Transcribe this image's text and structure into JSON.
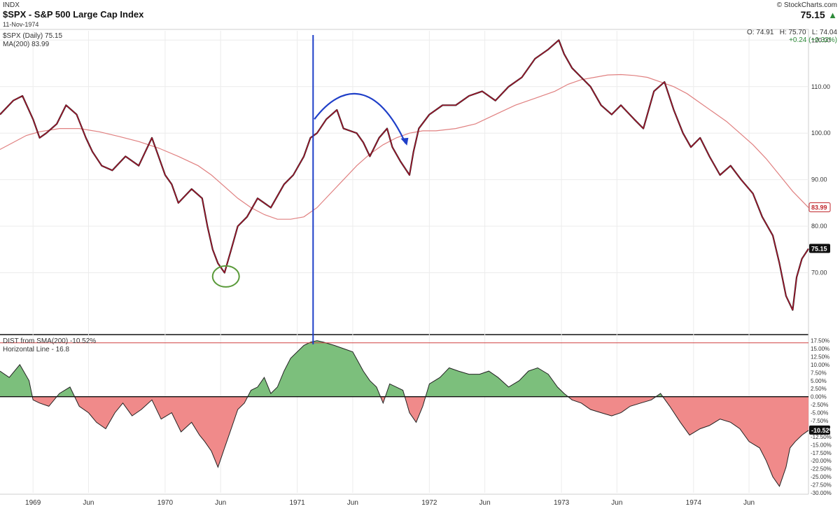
{
  "header": {
    "exchange": "INDX",
    "title": "$SPX - S&P 500 Large Cap Index",
    "date": "11-Nov-1974",
    "copyright": "© StockCharts.com",
    "last": "75.15",
    "ohlc": "O: 74.91   H: 75.70   L: 74.04",
    "change": "+0.24 (+0.32%)",
    "colors": {
      "up": "#2e8b3a",
      "down": "#c0272d"
    }
  },
  "chart_data": [
    {
      "type": "line",
      "legend": [
        "$SPX (Daily) 75.15",
        "MA(200) 83.99"
      ],
      "x_ticks": [
        "1969",
        "Jun",
        "1970",
        "Jun",
        "1971",
        "Jun",
        "1972",
        "Jun",
        "1973",
        "Jun",
        "1974",
        "Jun"
      ],
      "x_tick_dates": [
        1969.0,
        1969.42,
        1970.0,
        1970.42,
        1971.0,
        1971.42,
        1972.0,
        1972.42,
        1973.0,
        1973.42,
        1974.0,
        1974.42
      ],
      "x_range": [
        1968.75,
        1974.87
      ],
      "ylim": [
        57,
        122
      ],
      "y_ticks": [
        "120.00",
        "110.00",
        "100.00",
        "90.00",
        "80.00",
        "70.00"
      ],
      "y_tick_values": [
        120,
        110,
        100,
        90,
        80,
        70
      ],
      "series": [
        {
          "name": "$SPX (Daily)",
          "color": "#b0102a",
          "x": [
            1968.75,
            1968.85,
            1968.92,
            1969.0,
            1969.05,
            1969.1,
            1969.18,
            1969.25,
            1969.33,
            1969.4,
            1969.45,
            1969.52,
            1969.6,
            1969.7,
            1969.8,
            1969.9,
            1969.95,
            1970.0,
            1970.05,
            1970.1,
            1970.2,
            1970.28,
            1970.32,
            1970.36,
            1970.4,
            1970.45,
            1970.5,
            1970.55,
            1970.62,
            1970.7,
            1970.8,
            1970.9,
            1970.97,
            1971.05,
            1971.1,
            1971.15,
            1971.22,
            1971.3,
            1971.35,
            1971.45,
            1971.5,
            1971.55,
            1971.62,
            1971.68,
            1971.72,
            1971.78,
            1971.85,
            1971.88,
            1971.92,
            1972.0,
            1972.1,
            1972.2,
            1972.3,
            1972.4,
            1972.5,
            1972.6,
            1972.7,
            1972.8,
            1972.9,
            1972.98,
            1973.02,
            1973.08,
            1973.15,
            1973.22,
            1973.3,
            1973.38,
            1973.45,
            1973.55,
            1973.62,
            1973.7,
            1973.78,
            1973.85,
            1973.92,
            1973.98,
            1974.05,
            1974.12,
            1974.2,
            1974.28,
            1974.36,
            1974.45,
            1974.52,
            1974.6,
            1974.65,
            1974.7,
            1974.75,
            1974.78,
            1974.82,
            1974.87
          ],
          "values": [
            104,
            107,
            108,
            103,
            99,
            100,
            102,
            106,
            104,
            99,
            96,
            93,
            92,
            95,
            93,
            99,
            95,
            91,
            89,
            85,
            88,
            86,
            80,
            75,
            72,
            70,
            75,
            80,
            82,
            86,
            84,
            89,
            91,
            95,
            99,
            100,
            103,
            105,
            101,
            100,
            98,
            95,
            99,
            101,
            97,
            94,
            91,
            96,
            101,
            104,
            106,
            106,
            108,
            109,
            107,
            110,
            112,
            116,
            118,
            120,
            117,
            114,
            112,
            110,
            106,
            104,
            106,
            103,
            101,
            109,
            111,
            105,
            100,
            97,
            99,
            95,
            91,
            93,
            90,
            87,
            82,
            78,
            72,
            65,
            62,
            69,
            73,
            75.15
          ]
        },
        {
          "name": "MA(200)",
          "color": "#e08080",
          "x": [
            1968.75,
            1968.85,
            1968.95,
            1969.05,
            1969.2,
            1969.35,
            1969.5,
            1969.65,
            1969.8,
            1969.95,
            1970.1,
            1970.25,
            1970.35,
            1970.45,
            1970.55,
            1970.65,
            1970.75,
            1970.85,
            1970.95,
            1971.05,
            1971.15,
            1971.25,
            1971.35,
            1971.45,
            1971.55,
            1971.65,
            1971.75,
            1971.85,
            1971.95,
            1972.05,
            1972.2,
            1972.35,
            1972.5,
            1972.65,
            1972.8,
            1972.95,
            1973.05,
            1973.15,
            1973.25,
            1973.35,
            1973.45,
            1973.55,
            1973.65,
            1973.75,
            1973.85,
            1973.95,
            1974.05,
            1974.15,
            1974.25,
            1974.35,
            1974.45,
            1974.55,
            1974.65,
            1974.75,
            1974.87
          ],
          "values": [
            96.5,
            98,
            99.5,
            100.3,
            101,
            101,
            100.3,
            99.3,
            98.2,
            96.8,
            95,
            93,
            91,
            88.5,
            86,
            84,
            82.5,
            81.5,
            81.5,
            82,
            84,
            87,
            90,
            93,
            95.5,
            97.5,
            99,
            100,
            100.5,
            100.5,
            101,
            102,
            104,
            106,
            107.5,
            109,
            110.5,
            111.5,
            112,
            112.5,
            112.6,
            112.4,
            112,
            111,
            110,
            108.5,
            106.5,
            104.5,
            102.5,
            100,
            97.5,
            94.5,
            91,
            87.5,
            83.99
          ]
        }
      ],
      "last_labels": {
        "ma": "83.99",
        "price": "75.15"
      },
      "annotations": [
        "green circle around 1970 low",
        "blue vertical line at early 1971",
        "blue curved arrow over 1971 top"
      ]
    },
    {
      "type": "area",
      "legend": [
        "DIST from SMA(200) -10.52%",
        "Horizontal Line - 16.8"
      ],
      "ylim": [
        -30,
        18.5
      ],
      "y_ticks": [
        "17.50%",
        "15.00%",
        "12.50%",
        "10.00%",
        "7.50%",
        "5.00%",
        "2.50%",
        "0.00%",
        "-2.50%",
        "-5.00%",
        "-7.50%",
        "-10.00%",
        "-12.50%",
        "-15.00%",
        "-17.50%",
        "-20.00%",
        "-22.50%",
        "-25.00%",
        "-27.50%",
        "-30.00%"
      ],
      "y_tick_values": [
        17.5,
        15,
        12.5,
        10,
        7.5,
        5,
        2.5,
        0,
        -2.5,
        -5,
        -7.5,
        -10,
        -12.5,
        -15,
        -17.5,
        -20,
        -22.5,
        -25,
        -27.5,
        -30
      ],
      "horizontal_line": 16.8,
      "last_label": "-10.52%",
      "colors": {
        "positive": "#7cbf7c",
        "negative": "#f08a8a",
        "line": "#222222",
        "hline": "#d04040"
      },
      "x": [
        1968.75,
        1968.82,
        1968.9,
        1968.97,
        1969.0,
        1969.05,
        1969.12,
        1969.2,
        1969.28,
        1969.35,
        1969.42,
        1969.48,
        1969.55,
        1969.62,
        1969.68,
        1969.75,
        1969.82,
        1969.9,
        1969.97,
        1970.05,
        1970.12,
        1970.2,
        1970.26,
        1970.3,
        1970.35,
        1970.4,
        1970.45,
        1970.5,
        1970.55,
        1970.6,
        1970.65,
        1970.7,
        1970.75,
        1970.8,
        1970.85,
        1970.9,
        1970.95,
        1971.0,
        1971.05,
        1971.1,
        1971.15,
        1971.2,
        1971.28,
        1971.35,
        1971.42,
        1971.5,
        1971.55,
        1971.6,
        1971.65,
        1971.7,
        1971.75,
        1971.8,
        1971.85,
        1971.9,
        1971.95,
        1972.0,
        1972.08,
        1972.15,
        1972.22,
        1972.3,
        1972.38,
        1972.45,
        1972.52,
        1972.6,
        1972.68,
        1972.75,
        1972.82,
        1972.9,
        1972.97,
        1973.02,
        1973.08,
        1973.15,
        1973.22,
        1973.3,
        1973.38,
        1973.45,
        1973.52,
        1973.6,
        1973.68,
        1973.75,
        1973.82,
        1973.9,
        1973.97,
        1974.05,
        1974.12,
        1974.2,
        1974.28,
        1974.35,
        1974.42,
        1974.5,
        1974.55,
        1974.6,
        1974.65,
        1974.7,
        1974.73,
        1974.77,
        1974.82,
        1974.87
      ],
      "values": [
        8,
        6,
        10,
        5,
        -1,
        -2,
        -3,
        1,
        3,
        -3,
        -5,
        -8,
        -10,
        -5,
        -2,
        -6,
        -4,
        -1,
        -7,
        -5,
        -11,
        -8,
        -12,
        -14,
        -17,
        -22,
        -16,
        -10,
        -4,
        -2,
        2,
        3,
        6,
        1,
        3,
        8,
        12,
        14,
        16,
        17,
        17.5,
        17,
        16,
        15,
        14,
        8,
        5,
        3,
        -2,
        4,
        3,
        2,
        -5,
        -8,
        -3,
        4,
        6,
        9,
        8,
        7,
        7,
        8,
        6,
        3,
        5,
        8,
        9,
        7,
        3,
        1,
        -1,
        -2,
        -4,
        -5,
        -6,
        -5,
        -3,
        -2,
        -1,
        1,
        -3,
        -8,
        -12,
        -10,
        -9,
        -7,
        -8,
        -10,
        -14,
        -16,
        -20,
        -25,
        -28,
        -22,
        -16,
        -14,
        -12,
        -10.52
      ]
    }
  ]
}
